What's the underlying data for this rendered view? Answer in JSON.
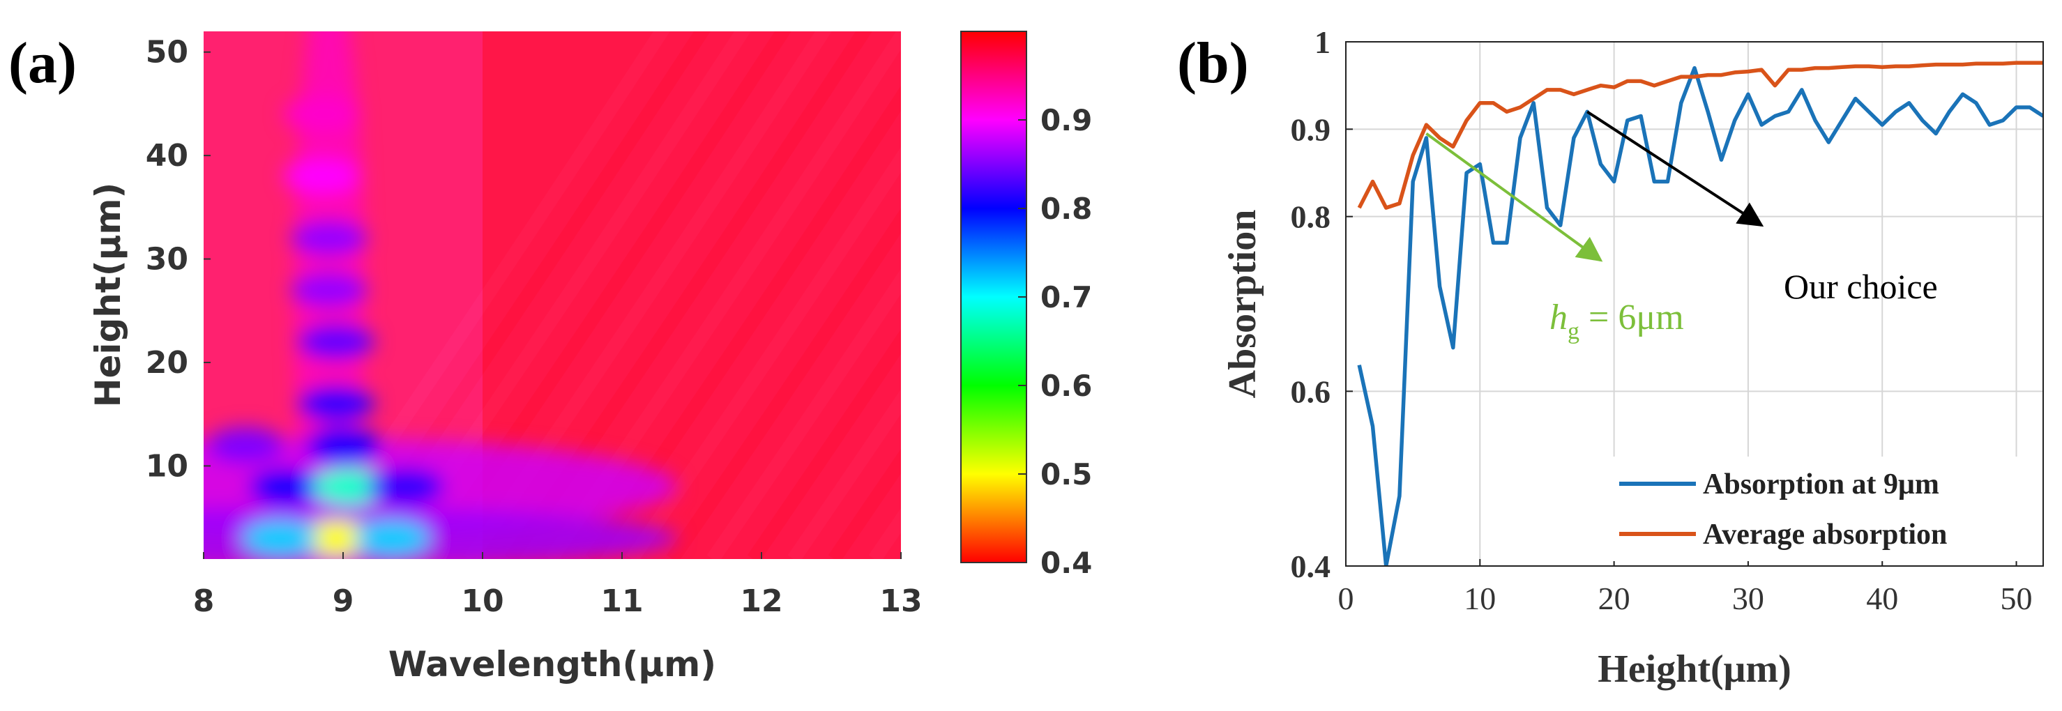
{
  "panels": {
    "a": {
      "tag": "(a)"
    },
    "b": {
      "tag": "(b)"
    }
  },
  "chart_data": [
    {
      "type": "heatmap",
      "title": "",
      "xlabel": "Wavelength(μm)",
      "ylabel": "Height(μm)",
      "xlim": [
        8,
        13
      ],
      "ylim": [
        1,
        52
      ],
      "x_ticks": [
        8,
        9,
        10,
        11,
        12,
        13
      ],
      "y_ticks": [
        10,
        20,
        30,
        40,
        50
      ],
      "colorbar": {
        "range": [
          0.4,
          1.0
        ],
        "ticks": [
          0.4,
          0.5,
          0.6,
          0.7,
          0.8,
          0.9
        ],
        "colormap": "hsv",
        "stops": [
          "#ff0000",
          "#ffff00",
          "#00ff00",
          "#00ffff",
          "#0000ff",
          "#ff00ff",
          "#ff0000"
        ]
      },
      "features": [
        {
          "x": 8.95,
          "y": 3,
          "value": 0.5
        },
        {
          "x": 8.55,
          "y": 3,
          "value": 0.72
        },
        {
          "x": 9.35,
          "y": 3,
          "value": 0.72
        },
        {
          "x": 8.6,
          "y": 8,
          "value": 0.8
        },
        {
          "x": 9.05,
          "y": 8,
          "value": 0.68
        },
        {
          "x": 9.45,
          "y": 8,
          "value": 0.82
        },
        {
          "x": 8.3,
          "y": 12,
          "value": 0.85
        },
        {
          "x": 9.0,
          "y": 12,
          "value": 0.8
        },
        {
          "x": 8.95,
          "y": 16,
          "value": 0.82
        },
        {
          "x": 8.95,
          "y": 22,
          "value": 0.84
        },
        {
          "x": 8.9,
          "y": 27,
          "value": 0.86
        },
        {
          "x": 8.9,
          "y": 32,
          "value": 0.86
        },
        {
          "x": 8.85,
          "y": 38,
          "value": 0.9
        },
        {
          "x": 8.85,
          "y": 44,
          "value": 0.92
        }
      ]
    },
    {
      "type": "line",
      "title": "",
      "xlabel": "Height(μm)",
      "ylabel": "Absorption",
      "xlim": [
        0,
        52
      ],
      "ylim": [
        0.4,
        1
      ],
      "x_ticks": [
        0,
        10,
        20,
        30,
        40,
        50
      ],
      "y_ticks": [
        0.4,
        0.6,
        0.8,
        0.9,
        1
      ],
      "y_tick_labels": [
        "0.4",
        "0.6",
        "0.8",
        "0.9",
        "1"
      ],
      "grid": true,
      "legend": "bottom-right",
      "series": [
        {
          "name": "Absorption at 9μm",
          "color": "#1a73b8",
          "x": [
            1,
            2,
            3,
            4,
            5,
            6,
            7,
            8,
            9,
            10,
            11,
            12,
            13,
            14,
            15,
            16,
            17,
            18,
            19,
            20,
            21,
            22,
            23,
            24,
            25,
            26,
            27,
            28,
            29,
            30,
            31,
            32,
            33,
            34,
            35,
            36,
            37,
            38,
            39,
            40,
            41,
            42,
            43,
            44,
            45,
            46,
            47,
            48,
            49,
            50,
            51,
            52
          ],
          "values": [
            0.63,
            0.56,
            0.4,
            0.48,
            0.84,
            0.89,
            0.72,
            0.65,
            0.85,
            0.86,
            0.77,
            0.77,
            0.89,
            0.93,
            0.81,
            0.79,
            0.89,
            0.92,
            0.86,
            0.84,
            0.91,
            0.915,
            0.84,
            0.84,
            0.93,
            0.97,
            0.92,
            0.865,
            0.91,
            0.94,
            0.905,
            0.915,
            0.92,
            0.945,
            0.91,
            0.885,
            0.91,
            0.935,
            0.92,
            0.905,
            0.92,
            0.93,
            0.91,
            0.895,
            0.92,
            0.94,
            0.93,
            0.905,
            0.91,
            0.925,
            0.925,
            0.915
          ]
        },
        {
          "name": "Average absorption",
          "color": "#d95319",
          "x": [
            1,
            2,
            3,
            4,
            5,
            6,
            7,
            8,
            9,
            10,
            11,
            12,
            13,
            14,
            15,
            16,
            17,
            18,
            19,
            20,
            21,
            22,
            23,
            24,
            25,
            26,
            27,
            28,
            29,
            30,
            31,
            32,
            33,
            34,
            35,
            36,
            37,
            38,
            39,
            40,
            41,
            42,
            43,
            44,
            45,
            46,
            47,
            48,
            49,
            50,
            51,
            52
          ],
          "values": [
            0.81,
            0.84,
            0.81,
            0.815,
            0.87,
            0.905,
            0.89,
            0.88,
            0.91,
            0.93,
            0.93,
            0.92,
            0.925,
            0.935,
            0.945,
            0.945,
            0.94,
            0.945,
            0.95,
            0.948,
            0.955,
            0.955,
            0.95,
            0.955,
            0.96,
            0.96,
            0.962,
            0.962,
            0.965,
            0.966,
            0.968,
            0.95,
            0.968,
            0.968,
            0.97,
            0.97,
            0.971,
            0.972,
            0.972,
            0.971,
            0.972,
            0.972,
            0.973,
            0.974,
            0.974,
            0.974,
            0.975,
            0.975,
            0.975,
            0.976,
            0.976,
            0.976
          ]
        }
      ],
      "annotations": [
        {
          "name": "hg-annotation",
          "prefix": "h",
          "subscript": "g",
          "suffix": " = 6μm",
          "color": "#7cbf3a",
          "arrow_from": [
            6,
            0.895
          ],
          "arrow_to": [
            19,
            0.75
          ]
        },
        {
          "name": "our-choice-annotation",
          "text": "Our choice",
          "color": "#000000",
          "arrow_from": [
            18,
            0.92
          ],
          "arrow_to": [
            31,
            0.79
          ]
        }
      ]
    }
  ]
}
